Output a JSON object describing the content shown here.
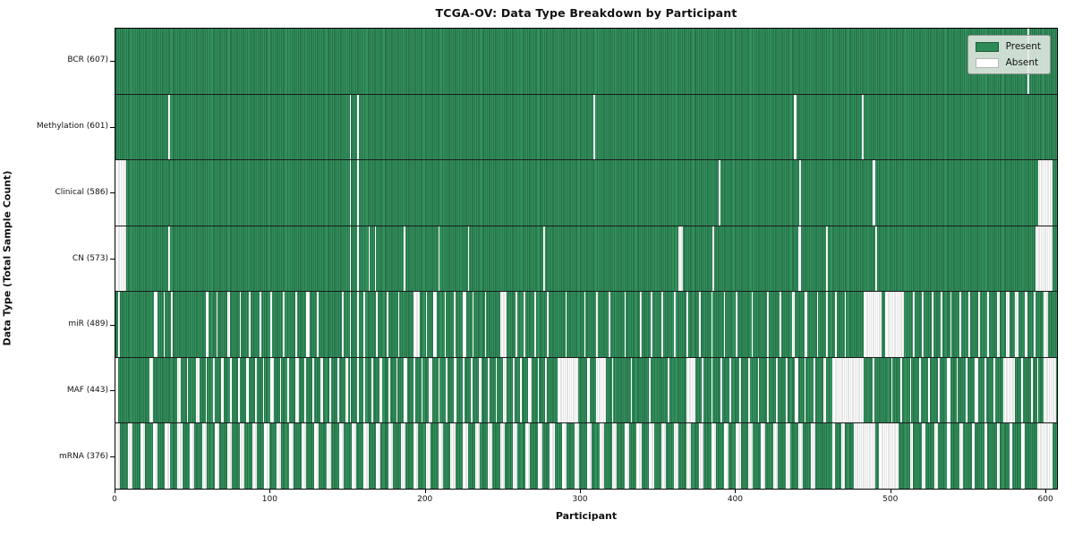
{
  "chart_data": {
    "type": "heatmap",
    "title": "TCGA-OV: Data Type Breakdown by Participant",
    "xlabel": "Participant",
    "ylabel": "Data Type (Total Sample Count)",
    "x_ticks": [
      0,
      100,
      200,
      300,
      400,
      500,
      600
    ],
    "x_range": [
      0,
      608
    ],
    "total_participants": 608,
    "grid": false,
    "legend_position": "upper right",
    "legend": [
      {
        "label": "Present",
        "color": "#2e8b57"
      },
      {
        "label": "Absent",
        "color": "#ffffff"
      }
    ],
    "colors": {
      "present": "#2e8b57",
      "present_edge": "#1d5b39",
      "absent": "#ffffff",
      "absent_edge": "#c9c9c9",
      "row_separator": "#1a1a1a"
    },
    "rows": [
      {
        "label": "BCR (607)",
        "name": "BCR",
        "present": 607,
        "absent": 1,
        "absent_ranges": [
          [
            588,
            589
          ]
        ]
      },
      {
        "label": "Methylation (601)",
        "name": "Methylation",
        "present": 601,
        "absent": 7,
        "absent_ranges": [
          [
            34,
            35
          ],
          [
            151,
            152
          ],
          [
            156,
            157
          ],
          [
            308,
            309
          ],
          [
            437,
            439
          ],
          [
            481,
            482
          ]
        ]
      },
      {
        "label": "Clinical (586)",
        "name": "Clinical",
        "present": 586,
        "absent": 22,
        "absent_ranges": [
          [
            0,
            7
          ],
          [
            151,
            152
          ],
          [
            156,
            157
          ],
          [
            389,
            390
          ],
          [
            441,
            442
          ],
          [
            488,
            490
          ],
          [
            595,
            604
          ]
        ]
      },
      {
        "label": "CN (573)",
        "name": "CN",
        "present": 573,
        "absent": 35,
        "absent_ranges": [
          [
            0,
            7
          ],
          [
            34,
            35
          ],
          [
            151,
            152
          ],
          [
            156,
            157
          ],
          [
            163,
            164
          ],
          [
            167,
            168
          ],
          [
            186,
            187
          ],
          [
            208,
            209
          ],
          [
            227,
            228
          ],
          [
            276,
            277
          ],
          [
            363,
            366
          ],
          [
            385,
            386
          ],
          [
            440,
            442
          ],
          [
            458,
            459
          ],
          [
            490,
            491
          ],
          [
            593,
            604
          ]
        ]
      },
      {
        "label": "miR (489)",
        "name": "miR",
        "present": 489,
        "absent": 119,
        "absent_ranges": [
          [
            2,
            3
          ],
          [
            25,
            27
          ],
          [
            31,
            32
          ],
          [
            36,
            37
          ],
          [
            58,
            60
          ],
          [
            65,
            66
          ],
          [
            72,
            74
          ],
          [
            80,
            81
          ],
          [
            86,
            87
          ],
          [
            93,
            94
          ],
          [
            100,
            101
          ],
          [
            108,
            109
          ],
          [
            116,
            117
          ],
          [
            123,
            125
          ],
          [
            130,
            131
          ],
          [
            146,
            147
          ],
          [
            151,
            152
          ],
          [
            156,
            157
          ],
          [
            160,
            161
          ],
          [
            168,
            169
          ],
          [
            175,
            176
          ],
          [
            182,
            183
          ],
          [
            192,
            196
          ],
          [
            200,
            201
          ],
          [
            205,
            207
          ],
          [
            212,
            213
          ],
          [
            218,
            219
          ],
          [
            224,
            226
          ],
          [
            230,
            231
          ],
          [
            238,
            239
          ],
          [
            248,
            252
          ],
          [
            258,
            259
          ],
          [
            263,
            264
          ],
          [
            270,
            271
          ],
          [
            278,
            279
          ],
          [
            290,
            291
          ],
          [
            302,
            303
          ],
          [
            310,
            311
          ],
          [
            318,
            319
          ],
          [
            328,
            329
          ],
          [
            338,
            339
          ],
          [
            345,
            346
          ],
          [
            352,
            353
          ],
          [
            360,
            361
          ],
          [
            368,
            369
          ],
          [
            376,
            377
          ],
          [
            384,
            385
          ],
          [
            392,
            393
          ],
          [
            400,
            401
          ],
          [
            410,
            411
          ],
          [
            420,
            421
          ],
          [
            428,
            429
          ],
          [
            436,
            438
          ],
          [
            444,
            446
          ],
          [
            452,
            453
          ],
          [
            458,
            459
          ],
          [
            464,
            465
          ],
          [
            470,
            471
          ],
          [
            482,
            494
          ],
          [
            496,
            508
          ],
          [
            514,
            515
          ],
          [
            520,
            521
          ],
          [
            526,
            527
          ],
          [
            532,
            533
          ],
          [
            538,
            539
          ],
          [
            544,
            545
          ],
          [
            550,
            551
          ],
          [
            556,
            557
          ],
          [
            562,
            563
          ],
          [
            568,
            570
          ],
          [
            574,
            576
          ],
          [
            580,
            582
          ],
          [
            586,
            588
          ],
          [
            592,
            593
          ],
          [
            598,
            601
          ]
        ]
      },
      {
        "label": "MAF (443)",
        "name": "MAF",
        "present": 443,
        "absent": 165,
        "absent_ranges": [
          [
            0,
            2
          ],
          [
            22,
            24
          ],
          [
            40,
            42
          ],
          [
            46,
            47
          ],
          [
            52,
            54
          ],
          [
            58,
            59
          ],
          [
            63,
            64
          ],
          [
            68,
            70
          ],
          [
            74,
            75
          ],
          [
            79,
            80
          ],
          [
            84,
            86
          ],
          [
            90,
            91
          ],
          [
            95,
            96
          ],
          [
            100,
            102
          ],
          [
            106,
            107
          ],
          [
            111,
            112
          ],
          [
            116,
            118
          ],
          [
            122,
            123
          ],
          [
            127,
            128
          ],
          [
            132,
            134
          ],
          [
            138,
            139
          ],
          [
            143,
            144
          ],
          [
            148,
            150
          ],
          [
            151,
            152
          ],
          [
            156,
            157
          ],
          [
            160,
            161
          ],
          [
            165,
            166
          ],
          [
            170,
            172
          ],
          [
            176,
            177
          ],
          [
            181,
            182
          ],
          [
            186,
            188
          ],
          [
            192,
            193
          ],
          [
            197,
            198
          ],
          [
            202,
            204
          ],
          [
            208,
            209
          ],
          [
            213,
            214
          ],
          [
            218,
            220
          ],
          [
            224,
            225
          ],
          [
            229,
            230
          ],
          [
            234,
            236
          ],
          [
            240,
            241
          ],
          [
            245,
            246
          ],
          [
            250,
            252
          ],
          [
            256,
            257
          ],
          [
            261,
            262
          ],
          [
            266,
            268
          ],
          [
            272,
            273
          ],
          [
            277,
            278
          ],
          [
            285,
            298
          ],
          [
            304,
            306
          ],
          [
            310,
            316
          ],
          [
            320,
            321
          ],
          [
            332,
            333
          ],
          [
            344,
            345
          ],
          [
            356,
            357
          ],
          [
            368,
            374
          ],
          [
            378,
            379
          ],
          [
            384,
            385
          ],
          [
            390,
            391
          ],
          [
            396,
            397
          ],
          [
            402,
            403
          ],
          [
            408,
            409
          ],
          [
            414,
            415
          ],
          [
            420,
            421
          ],
          [
            426,
            427
          ],
          [
            432,
            433
          ],
          [
            438,
            440
          ],
          [
            444,
            445
          ],
          [
            450,
            451
          ],
          [
            456,
            458
          ],
          [
            462,
            482
          ],
          [
            488,
            489
          ],
          [
            500,
            501
          ],
          [
            506,
            507
          ],
          [
            512,
            513
          ],
          [
            518,
            519
          ],
          [
            524,
            525
          ],
          [
            530,
            531
          ],
          [
            536,
            538
          ],
          [
            542,
            543
          ],
          [
            548,
            549
          ],
          [
            554,
            556
          ],
          [
            560,
            561
          ],
          [
            566,
            567
          ],
          [
            572,
            580
          ],
          [
            584,
            585
          ],
          [
            590,
            591
          ],
          [
            594,
            595
          ],
          [
            598,
            606
          ]
        ]
      },
      {
        "label": "mRNA (376)",
        "name": "mRNA",
        "present": 376,
        "absent": 232,
        "absent_ranges": [
          [
            0,
            3
          ],
          [
            8,
            11
          ],
          [
            16,
            19
          ],
          [
            24,
            27
          ],
          [
            32,
            35
          ],
          [
            40,
            43
          ],
          [
            48,
            51
          ],
          [
            56,
            59
          ],
          [
            64,
            67
          ],
          [
            72,
            75
          ],
          [
            80,
            83
          ],
          [
            88,
            91
          ],
          [
            96,
            99
          ],
          [
            104,
            107
          ],
          [
            112,
            115
          ],
          [
            120,
            123
          ],
          [
            128,
            131
          ],
          [
            136,
            139
          ],
          [
            144,
            147
          ],
          [
            152,
            155
          ],
          [
            160,
            163
          ],
          [
            168,
            171
          ],
          [
            176,
            179
          ],
          [
            184,
            187
          ],
          [
            192,
            195
          ],
          [
            200,
            203
          ],
          [
            208,
            211
          ],
          [
            216,
            219
          ],
          [
            224,
            227
          ],
          [
            232,
            235
          ],
          [
            240,
            243
          ],
          [
            248,
            251
          ],
          [
            256,
            259
          ],
          [
            264,
            267
          ],
          [
            272,
            275
          ],
          [
            280,
            283
          ],
          [
            288,
            291
          ],
          [
            296,
            299
          ],
          [
            304,
            307
          ],
          [
            312,
            315
          ],
          [
            320,
            323
          ],
          [
            328,
            331
          ],
          [
            336,
            339
          ],
          [
            344,
            347
          ],
          [
            352,
            355
          ],
          [
            360,
            363
          ],
          [
            368,
            371
          ],
          [
            376,
            379
          ],
          [
            384,
            387
          ],
          [
            392,
            395
          ],
          [
            400,
            403
          ],
          [
            408,
            411
          ],
          [
            416,
            419
          ],
          [
            424,
            427
          ],
          [
            432,
            435
          ],
          [
            440,
            443
          ],
          [
            448,
            451
          ],
          [
            462,
            464
          ],
          [
            468,
            470
          ],
          [
            476,
            490
          ],
          [
            492,
            505
          ],
          [
            512,
            514
          ],
          [
            520,
            522
          ],
          [
            528,
            530
          ],
          [
            536,
            538
          ],
          [
            544,
            546
          ],
          [
            552,
            554
          ],
          [
            560,
            562
          ],
          [
            568,
            570
          ],
          [
            576,
            578
          ],
          [
            584,
            586
          ],
          [
            594,
            604
          ]
        ]
      }
    ]
  }
}
